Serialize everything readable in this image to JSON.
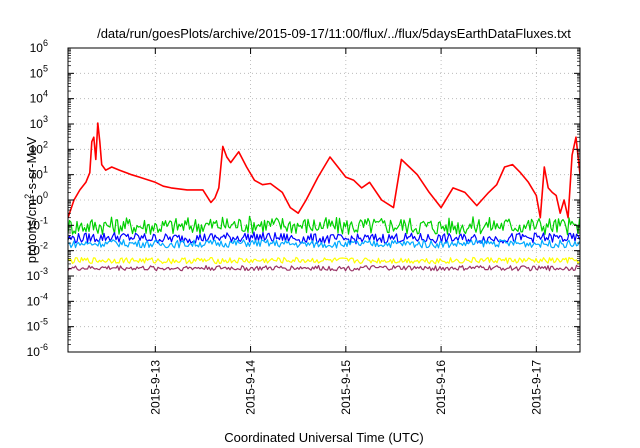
{
  "chart_data": {
    "type": "line",
    "title": "/data/run/goesPlots/archive/2015-09-17/11:00/flux/../flux/5daysEarthDataFluxes.txt",
    "xlabel": "Coordinated Universal Time (UTC)",
    "ylabel": {
      "before": "protons/cm",
      "sup": "2",
      "after": "-s-sr-MeV"
    },
    "y_scale": "log",
    "ylim": [
      1e-06,
      1000000.0
    ],
    "y_ticks": [
      {
        "value": 1e-06,
        "base": "10",
        "exp": "-6"
      },
      {
        "value": 1e-05,
        "base": "10",
        "exp": "-5"
      },
      {
        "value": 0.0001,
        "base": "10",
        "exp": "-4"
      },
      {
        "value": 0.001,
        "base": "10",
        "exp": "-3"
      },
      {
        "value": 0.01,
        "base": "10",
        "exp": "-2"
      },
      {
        "value": 0.1,
        "base": "10",
        "exp": "-1"
      },
      {
        "value": 1,
        "base": "10",
        "exp": "0"
      },
      {
        "value": 10.0,
        "base": "10",
        "exp": "1"
      },
      {
        "value": 100.0,
        "base": "10",
        "exp": "2"
      },
      {
        "value": 1000.0,
        "base": "10",
        "exp": "3"
      },
      {
        "value": 10000.0,
        "base": "10",
        "exp": "4"
      },
      {
        "value": 100000.0,
        "base": "10",
        "exp": "5"
      },
      {
        "value": 1000000.0,
        "base": "10",
        "exp": "6"
      }
    ],
    "xlim": [
      "2015-09-12T02:00",
      "2015-09-17T11:00"
    ],
    "x_ticks": [
      {
        "value": "2015-09-13T00:00",
        "label": "2015-9-13"
      },
      {
        "value": "2015-09-14T00:00",
        "label": "2015-9-14"
      },
      {
        "value": "2015-09-15T00:00",
        "label": "2015-9-15"
      },
      {
        "value": "2015-09-16T00:00",
        "label": "2015-9-16"
      },
      {
        "value": "2015-09-17T00:00",
        "label": "2015-9-17"
      }
    ],
    "grid": true,
    "series": [
      {
        "color": "#ff0000",
        "x": [
          "2015-09-12T02:00",
          "2015-09-12T03:30",
          "2015-09-12T05:00",
          "2015-09-12T06:30",
          "2015-09-12T07:30",
          "2015-09-12T08:00",
          "2015-09-12T08:30",
          "2015-09-12T09:00",
          "2015-09-12T09:30",
          "2015-09-12T10:00",
          "2015-09-12T10:30",
          "2015-09-12T11:30",
          "2015-09-12T13:00",
          "2015-09-12T15:00",
          "2015-09-12T18:00",
          "2015-09-12T20:00",
          "2015-09-13T00:00",
          "2015-09-13T02:00",
          "2015-09-13T04:00",
          "2015-09-13T08:00",
          "2015-09-13T12:00",
          "2015-09-13T14:00",
          "2015-09-13T15:00",
          "2015-09-13T16:00",
          "2015-09-13T17:00",
          "2015-09-13T18:00",
          "2015-09-13T19:00",
          "2015-09-13T21:00",
          "2015-09-13T23:00",
          "2015-09-14T01:00",
          "2015-09-14T03:00",
          "2015-09-14T05:00",
          "2015-09-14T08:00",
          "2015-09-14T10:00",
          "2015-09-14T12:00",
          "2015-09-14T14:00",
          "2015-09-14T17:00",
          "2015-09-14T20:00",
          "2015-09-14T22:00",
          "2015-09-15T00:00",
          "2015-09-15T02:00",
          "2015-09-15T04:00",
          "2015-09-15T06:00",
          "2015-09-15T09:00",
          "2015-09-15T12:00",
          "2015-09-15T14:00",
          "2015-09-15T16:00",
          "2015-09-15T18:00",
          "2015-09-15T21:00",
          "2015-09-16T00:00",
          "2015-09-16T03:00",
          "2015-09-16T06:00",
          "2015-09-16T09:00",
          "2015-09-16T12:00",
          "2015-09-16T14:00",
          "2015-09-16T16:00",
          "2015-09-16T18:00",
          "2015-09-16T20:00",
          "2015-09-16T22:00",
          "2015-09-17T00:00",
          "2015-09-17T01:00",
          "2015-09-17T02:00",
          "2015-09-17T03:00",
          "2015-09-17T04:00",
          "2015-09-17T05:00",
          "2015-09-17T06:00",
          "2015-09-17T07:00",
          "2015-09-17T08:00",
          "2015-09-17T09:00",
          "2015-09-17T10:00",
          "2015-09-17T11:00"
        ],
        "values": [
          0.2,
          1.0,
          2.5,
          5.0,
          12,
          200,
          300,
          40,
          1100,
          200,
          25,
          15,
          20,
          15,
          10,
          8,
          5,
          3.5,
          3,
          2.5,
          2.5,
          0.8,
          1.2,
          3,
          130,
          50,
          30,
          80,
          20,
          6,
          4,
          4.5,
          2,
          0.5,
          0.3,
          1.0,
          8,
          50,
          20,
          8,
          6,
          3,
          5,
          1.0,
          0.5,
          40,
          20,
          10,
          2,
          0.5,
          3,
          2,
          0.6,
          2,
          4,
          20,
          25,
          12,
          5,
          1.5,
          0.2,
          20,
          3,
          2,
          1.5,
          0.3,
          1,
          0.2,
          60,
          300,
          10
        ]
      },
      {
        "color": "#00d000",
        "x": [
          "2015-09-12T02:00",
          "2015-09-12T14:00",
          "2015-09-13T02:00",
          "2015-09-13T14:00",
          "2015-09-14T02:00",
          "2015-09-14T14:00",
          "2015-09-15T02:00",
          "2015-09-15T14:00",
          "2015-09-16T02:00",
          "2015-09-16T14:00",
          "2015-09-17T02:00",
          "2015-09-17T11:00"
        ],
        "values": [
          0.09,
          0.1,
          0.09,
          0.1,
          0.11,
          0.1,
          0.09,
          0.1,
          0.09,
          0.1,
          0.1,
          0.09
        ]
      },
      {
        "color": "#0000ff",
        "x": [
          "2015-09-12T02:00",
          "2015-09-12T14:00",
          "2015-09-13T02:00",
          "2015-09-13T14:00",
          "2015-09-14T02:00",
          "2015-09-14T14:00",
          "2015-09-15T02:00",
          "2015-09-15T14:00",
          "2015-09-16T02:00",
          "2015-09-16T14:00",
          "2015-09-17T02:00",
          "2015-09-17T11:00"
        ],
        "values": [
          0.03,
          0.035,
          0.03,
          0.032,
          0.035,
          0.03,
          0.028,
          0.032,
          0.03,
          0.03,
          0.033,
          0.03
        ]
      },
      {
        "color": "#00aaff",
        "x": [
          "2015-09-12T02:00",
          "2015-09-12T14:00",
          "2015-09-13T02:00",
          "2015-09-13T14:00",
          "2015-09-14T02:00",
          "2015-09-14T14:00",
          "2015-09-15T02:00",
          "2015-09-15T14:00",
          "2015-09-16T02:00",
          "2015-09-16T14:00",
          "2015-09-17T02:00",
          "2015-09-17T11:00"
        ],
        "values": [
          0.018,
          0.02,
          0.018,
          0.019,
          0.02,
          0.018,
          0.018,
          0.019,
          0.018,
          0.02,
          0.019,
          0.018
        ]
      },
      {
        "color": "#ffff00",
        "x": [
          "2015-09-12T02:00",
          "2015-09-12T14:00",
          "2015-09-13T02:00",
          "2015-09-13T14:00",
          "2015-09-14T02:00",
          "2015-09-14T14:00",
          "2015-09-15T02:00",
          "2015-09-15T14:00",
          "2015-09-16T02:00",
          "2015-09-16T14:00",
          "2015-09-17T02:00",
          "2015-09-17T11:00"
        ],
        "values": [
          0.004,
          0.0042,
          0.004,
          0.0041,
          0.004,
          0.0042,
          0.004,
          0.0041,
          0.004,
          0.0042,
          0.004,
          0.0041
        ]
      },
      {
        "color": "#993366",
        "x": [
          "2015-09-12T02:00",
          "2015-09-12T14:00",
          "2015-09-13T02:00",
          "2015-09-13T14:00",
          "2015-09-14T02:00",
          "2015-09-14T14:00",
          "2015-09-15T02:00",
          "2015-09-15T14:00",
          "2015-09-16T02:00",
          "2015-09-16T14:00",
          "2015-09-17T02:00",
          "2015-09-17T11:00"
        ],
        "values": [
          0.002,
          0.0021,
          0.002,
          0.0021,
          0.002,
          0.0021,
          0.002,
          0.0021,
          0.002,
          0.0021,
          0.002,
          0.0021
        ]
      }
    ]
  }
}
